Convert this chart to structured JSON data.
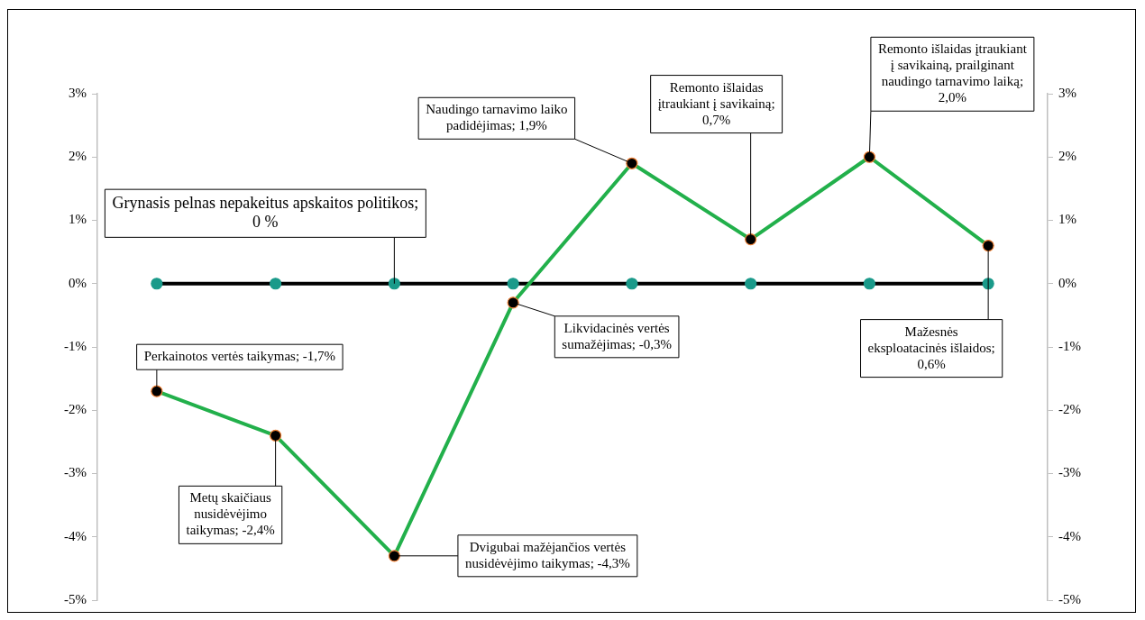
{
  "chart_data": {
    "type": "line",
    "categories": [
      null,
      null,
      null,
      null,
      null,
      null,
      null,
      null
    ],
    "series": [
      {
        "color": "#000000",
        "colors": [
          "#1a9a8a",
          "#1a9a8a",
          "#1a9a8a",
          "#1a9a8a",
          "#1a9a8a",
          "#1a9a8a",
          "#1a9a8a",
          "#1a9a8a"
        ],
        "values": [
          0,
          0,
          0,
          0,
          0,
          0,
          0,
          0
        ],
        "value_labels": [
          null,
          null,
          "Grynasis pelnas nepakeitus apskaitos politikos; 0 %",
          null,
          null,
          null,
          null,
          null
        ]
      },
      {
        "color": "#22b04b",
        "colors": [
          "#000000",
          "#000000",
          "#000000",
          "#000000",
          "#000000",
          "#000000",
          "#000000",
          "#000000"
        ],
        "values": [
          -1.7,
          -2.4,
          -4.3,
          -0.3,
          1.9,
          0.7,
          2.0,
          0.6
        ],
        "value_labels": [
          "Perkainotos vertės taikymas; -1,7%",
          "Metų skaičiaus nusidėvėjimo taikymas; -2,4%",
          "Dvigubai mažėjančios vertės nusidėvėjimo taikymas; -4,3%",
          "Likvidacinės vertės sumažėjimas; -0,3%",
          "Naudingo tarnavimo laiko padidėjimas; 1,9%",
          "Remonto išlaidas įtraukiant į savikainą; 0,7%",
          "Remonto išlaidas įtraukiant į savikainą, prailginant naudingo tarnavimo laiką; 2,0%",
          "Mažesnės eksploatacinės išlaidos; 0,6%"
        ]
      }
    ],
    "ylim": [
      -5,
      3
    ],
    "yticks": [
      {
        "value": -5,
        "label": "-5%"
      },
      {
        "value": -4,
        "label": "-4%"
      },
      {
        "value": -3,
        "label": "-3%"
      },
      {
        "value": -2,
        "label": "-2%"
      },
      {
        "value": -1,
        "label": "-1%"
      },
      {
        "value": 0,
        "label": "0%"
      },
      {
        "value": 1,
        "label": "1%"
      },
      {
        "value": 2,
        "label": "2%"
      },
      {
        "value": 3,
        "label": "3%"
      }
    ],
    "y2lim": [
      -5,
      3
    ],
    "y2ticks": [
      {
        "value": -5,
        "label": "-5%"
      },
      {
        "value": -4,
        "label": "-4%"
      },
      {
        "value": -3,
        "label": "-3%"
      },
      {
        "value": -2,
        "label": "-2%"
      },
      {
        "value": -1,
        "label": "-1%"
      },
      {
        "value": 0,
        "label": "0%"
      },
      {
        "value": 1,
        "label": "1%"
      },
      {
        "value": 2,
        "label": "2%"
      },
      {
        "value": 3,
        "label": "3%"
      }
    ],
    "tick_labels": "y",
    "grid": false,
    "legend": false,
    "marker": "circle",
    "line_style": "solid"
  }
}
